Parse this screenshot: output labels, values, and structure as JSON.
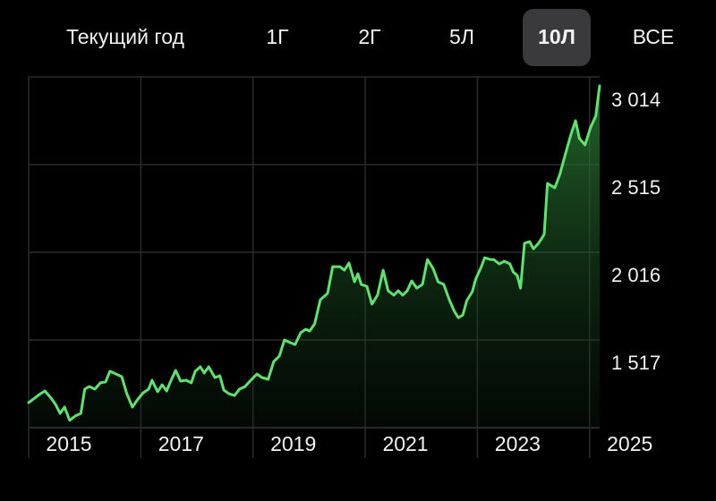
{
  "tabs": [
    {
      "label": "Текущий год"
    },
    {
      "label": "1Г"
    },
    {
      "label": "2Г"
    },
    {
      "label": "5Л"
    },
    {
      "label": "10Л",
      "selected": true
    },
    {
      "label": "ВСЕ"
    }
  ],
  "chart_data": {
    "type": "line",
    "color": "#5ee36d",
    "grid": true,
    "x": [
      2015.0,
      2015.21,
      2015.29,
      2015.4,
      2015.48,
      2015.56,
      2015.64,
      2015.73,
      2015.83,
      2015.93,
      2016.0,
      2016.08,
      2016.18,
      2016.28,
      2016.37,
      2016.45,
      2016.56,
      2016.66,
      2016.75,
      2016.85,
      2016.95,
      2017.04,
      2017.14,
      2017.2,
      2017.3,
      2017.38,
      2017.46,
      2017.52,
      2017.62,
      2017.71,
      2017.81,
      2017.9,
      2017.97,
      2018.06,
      2018.13,
      2018.21,
      2018.32,
      2018.41,
      2018.48,
      2018.57,
      2018.67,
      2018.76,
      2018.86,
      2018.96,
      2019.07,
      2019.16,
      2019.27,
      2019.37,
      2019.47,
      2019.56,
      2019.66,
      2019.75,
      2019.85,
      2019.94,
      2020.01,
      2020.1,
      2020.2,
      2020.33,
      2020.42,
      2020.55,
      2020.63,
      2020.71,
      2020.81,
      2020.87,
      2020.93,
      2021.03,
      2021.12,
      2021.22,
      2021.32,
      2021.41,
      2021.51,
      2021.59,
      2021.67,
      2021.75,
      2021.83,
      2021.92,
      2022.02,
      2022.11,
      2022.21,
      2022.3,
      2022.4,
      2022.5,
      2022.59,
      2022.66,
      2022.74,
      2022.81,
      2022.91,
      2022.97,
      2023.07,
      2023.13,
      2023.23,
      2023.29,
      2023.39,
      2023.48,
      2023.58,
      2023.64,
      2023.71,
      2023.77,
      2023.84,
      2023.93,
      2024.0,
      2024.09,
      2024.19,
      2024.25,
      2024.38,
      2024.47,
      2024.57,
      2024.67,
      2024.75,
      2024.82,
      2024.92,
      2025.02,
      2025.11,
      2025.18
    ],
    "values": [
      1160,
      1211,
      1227,
      1186,
      1150,
      1099,
      1135,
      1059,
      1084,
      1099,
      1237,
      1252,
      1237,
      1273,
      1278,
      1339,
      1323,
      1308,
      1211,
      1135,
      1181,
      1216,
      1237,
      1288,
      1222,
      1262,
      1227,
      1273,
      1344,
      1283,
      1288,
      1273,
      1339,
      1364,
      1329,
      1364,
      1303,
      1313,
      1232,
      1211,
      1201,
      1237,
      1252,
      1288,
      1323,
      1303,
      1293,
      1395,
      1425,
      1517,
      1502,
      1491,
      1558,
      1578,
      1568,
      1609,
      1746,
      1782,
      1934,
      1934,
      1914,
      1955,
      1848,
      1894,
      1833,
      1822,
      1721,
      1772,
      1914,
      1797,
      1772,
      1797,
      1772,
      1797,
      1853,
      1812,
      1833,
      1975,
      1924,
      1848,
      1833,
      1746,
      1680,
      1644,
      1659,
      1741,
      1792,
      1863,
      1934,
      1985,
      1975,
      1975,
      1950,
      1965,
      1950,
      1904,
      1884,
      1812,
      2067,
      2077,
      2036,
      2067,
      2118,
      2408,
      2383,
      2459,
      2576,
      2688,
      2765,
      2663,
      2627,
      2729,
      2790,
      2963
    ],
    "xlim": [
      2015,
      2025.18
    ],
    "xticks": [
      2015,
      2017,
      2019,
      2021,
      2023,
      2025
    ],
    "ylim": [
      1018,
      3014
    ],
    "yticks": [
      {
        "value": 1517,
        "label": "1 517"
      },
      {
        "value": 2016,
        "label": "2 016"
      },
      {
        "value": 2515,
        "label": "2 515"
      },
      {
        "value": 3014,
        "label": "3 014"
      }
    ]
  }
}
